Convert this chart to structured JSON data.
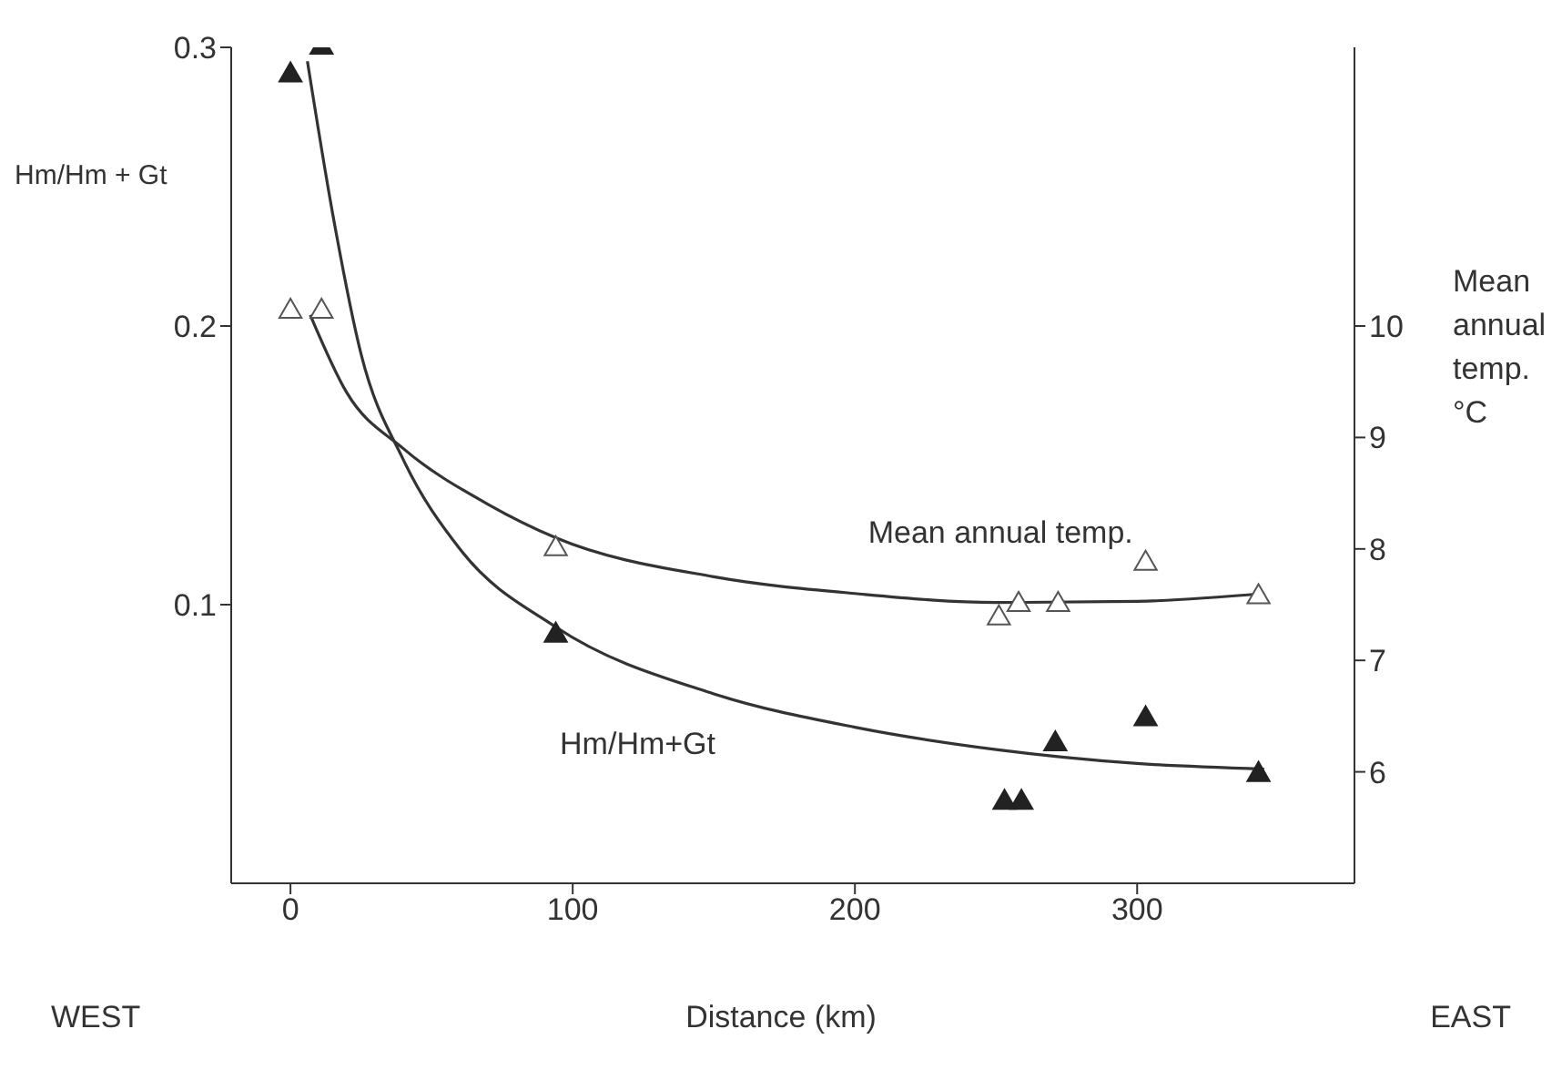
{
  "chart_data": {
    "type": "scatter",
    "xlabel": "Distance (km)",
    "ylabel": "Hm/Hm + Gt",
    "y2label": "Mean annual temp. °C",
    "annotations": [
      "WEST",
      "EAST"
    ],
    "xlim": [
      -21,
      377
    ],
    "xticks": [
      0,
      100,
      200,
      300
    ],
    "ylim": [
      0,
      0.3
    ],
    "yticks": [
      0.1,
      0.2,
      0.3
    ],
    "y2lim": [
      5,
      12.5
    ],
    "y2ticks": [
      6,
      7,
      8,
      9,
      10
    ],
    "grid": false,
    "legend": false,
    "marker": "triangle",
    "series": [
      {
        "color": "#222222",
        "x": [
          0,
          11,
          94,
          253,
          259,
          271,
          303,
          343
        ],
        "values": [
          0.29,
          0.3,
          0.089,
          0.029,
          0.029,
          0.05,
          0.059,
          0.039
        ]
      },
      {
        "color": "#555555",
        "axis": "y2",
        "x": [
          0,
          11,
          94,
          251,
          258,
          272,
          303,
          343
        ],
        "values": [
          10.13,
          10.13,
          8.0,
          7.38,
          7.5,
          7.5,
          7.87,
          7.57
        ]
      },
      {
        "type": "line",
        "name": "Hm/Hm+Gt",
        "color": "#333333",
        "marker": "none",
        "x": [
          6,
          15,
          25,
          40,
          60,
          94,
          150,
          200,
          250,
          300,
          345
        ],
        "values": [
          0.295,
          0.24,
          0.19,
          0.152,
          0.12,
          0.092,
          0.068,
          0.056,
          0.048,
          0.043,
          0.041
        ]
      },
      {
        "type": "line",
        "name": "Mean annual temp.",
        "color": "#333333",
        "marker": "none",
        "axis": "y2",
        "x": [
          7,
          20,
          40,
          70,
          94,
          150,
          200,
          250,
          300,
          345
        ],
        "values": [
          10.1,
          9.4,
          8.9,
          8.4,
          8.1,
          7.75,
          7.6,
          7.52,
          7.53,
          7.6
        ]
      }
    ]
  }
}
